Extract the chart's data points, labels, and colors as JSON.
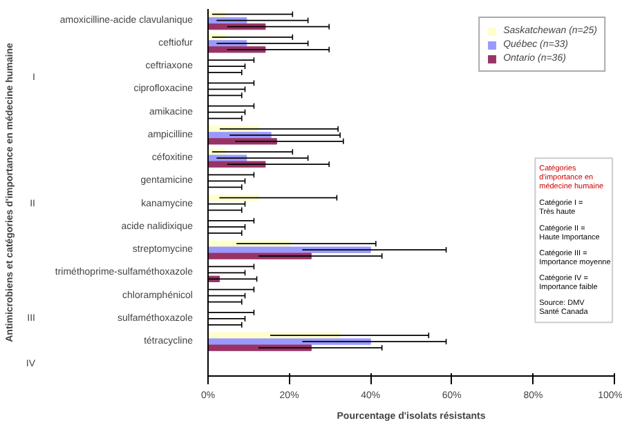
{
  "chart_data": {
    "type": "bar",
    "orientation": "horizontal",
    "xlabel": "Pourcentage d'isolats résistants",
    "ylabel": "Antimicrobiens et catégories d'importance en médecine humaine",
    "categories": [
      "amoxicilline-acide clavulanique",
      "ceftiofur",
      "ceftriaxone",
      "ciprofloxacine",
      "amikacine",
      "ampicilline",
      "céfoxitine",
      "gentamicine",
      "kanamycine",
      "acide nalidixique",
      "streptomycine",
      "triméthoprime-sulfaméthoxazole",
      "chloramphénicol",
      "sulfaméthoxazole",
      "tétracycline",
      null
    ],
    "series": [
      {
        "name": "Saskatchewan (n=25)",
        "color": "#ffffcc",
        "values": [
          4.2,
          4.2,
          0,
          0,
          0,
          12.4,
          4.2,
          0,
          12.4,
          0,
          20.2,
          0,
          0,
          0,
          32.6,
          null
        ],
        "errors": [
          [
            1,
            20.8
          ],
          [
            1,
            20.8
          ],
          [
            0,
            11.3
          ],
          [
            0,
            11.3
          ],
          [
            0,
            11.3
          ],
          [
            2.9,
            32
          ],
          [
            1,
            20.8
          ],
          [
            0,
            11.3
          ],
          [
            2.8,
            31.7
          ],
          [
            0,
            11.3
          ],
          [
            7,
            41.3
          ],
          [
            0,
            11.3
          ],
          [
            0,
            11.3
          ],
          [
            0,
            11.3
          ],
          [
            15.3,
            54.3
          ],
          null
        ]
      },
      {
        "name": "Québec (n=33)",
        "color": "#9999ff",
        "values": [
          9.5,
          9.5,
          0,
          0,
          0,
          15.5,
          9.5,
          0,
          0,
          0,
          40,
          0,
          0,
          0,
          40,
          null
        ],
        "errors": [
          [
            2.1,
            24.6
          ],
          [
            2.1,
            24.6
          ],
          [
            0,
            9.1
          ],
          [
            0,
            9.1
          ],
          [
            0,
            9.1
          ],
          [
            5.3,
            32.5
          ],
          [
            2.1,
            24.6
          ],
          [
            0,
            9.1
          ],
          [
            0,
            9.1
          ],
          [
            0,
            9.1
          ],
          [
            23.2,
            58.6
          ],
          [
            0,
            9.1
          ],
          [
            0,
            9.1
          ],
          [
            0,
            9.1
          ],
          [
            23.2,
            58.6
          ],
          null
        ]
      },
      {
        "name": "Ontario (n=36)",
        "color": "#993366",
        "values": [
          14.1,
          14.1,
          0,
          0,
          0,
          16.9,
          14.1,
          0,
          0,
          0,
          25.4,
          2.8,
          0,
          0,
          25.4,
          null
        ],
        "errors": [
          [
            4.7,
            29.8
          ],
          [
            4.7,
            29.8
          ],
          [
            0,
            8.3
          ],
          [
            0,
            8.3
          ],
          [
            0,
            8.3
          ],
          [
            6.7,
            33.3
          ],
          [
            4.7,
            29.8
          ],
          [
            0,
            8.3
          ],
          [
            0,
            8.3
          ],
          [
            0,
            8.3
          ],
          [
            12.4,
            42.8
          ],
          [
            0,
            12
          ],
          [
            0,
            8.3
          ],
          [
            0,
            8.3
          ],
          [
            12.4,
            42.8
          ],
          null
        ]
      }
    ],
    "xlim": [
      0,
      100
    ],
    "xticks": [
      {
        "value": 0,
        "label": "0%"
      },
      {
        "value": 20,
        "label": "20%"
      },
      {
        "value": 40,
        "label": "40%"
      },
      {
        "value": 60,
        "label": "60%"
      },
      {
        "value": 80,
        "label": "80%"
      },
      {
        "value": 100,
        "label": "100%"
      }
    ],
    "legend": "top right",
    "grid": false,
    "annotations": [
      "I",
      "II",
      "III",
      "IV",
      "Catégories\nd'importance en\nmédecine humaine",
      "Catégorie I =\nTrès haute",
      "Catégorie II =\nHaute Importance",
      "Catégorie III =\nImportance moyenne",
      "Catégorie IV =\nImportance faible",
      "Source: DMV\nSanté Canada"
    ]
  }
}
